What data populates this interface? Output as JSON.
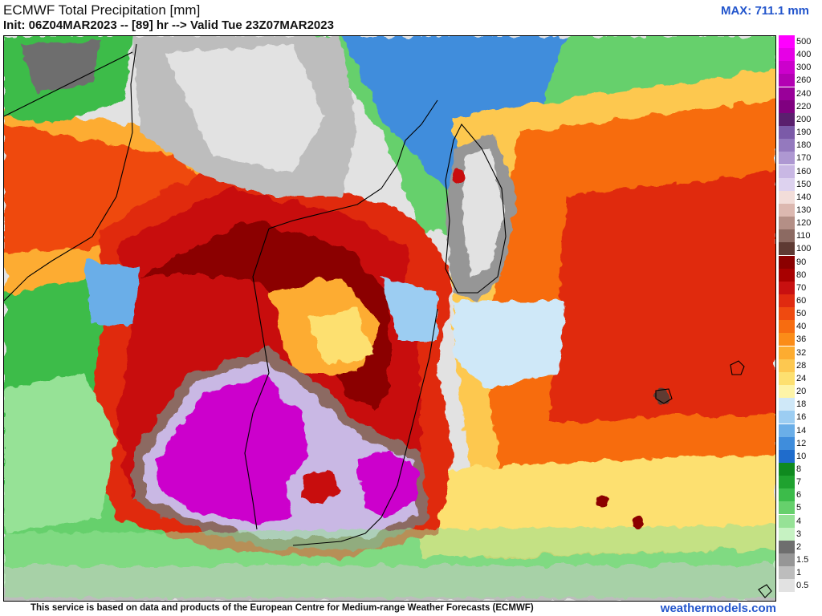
{
  "header": {
    "title": "ECMWF Total Precipitation [mm]",
    "subtitle": "Init: 06Z04MAR2023 -- [89] hr --> Valid Tue 23Z07MAR2023",
    "max_label": "MAX: 711.1 mm"
  },
  "footer": {
    "credit": "This service is based on data and products of the European Centre for Medium-range Weather Forecasts (ECMWF)",
    "brand": "weathermodels.com"
  },
  "legend": {
    "levels": [
      {
        "label": "500",
        "color": "#ff00ff"
      },
      {
        "label": "400",
        "color": "#e600e6"
      },
      {
        "label": "300",
        "color": "#cc00cc"
      },
      {
        "label": "260",
        "color": "#b300b3"
      },
      {
        "label": "240",
        "color": "#990099"
      },
      {
        "label": "220",
        "color": "#800080"
      },
      {
        "label": "200",
        "color": "#5a1f6e"
      },
      {
        "label": "190",
        "color": "#7b5aa8"
      },
      {
        "label": "180",
        "color": "#9479be"
      },
      {
        "label": "170",
        "color": "#ae98d2"
      },
      {
        "label": "160",
        "color": "#c9b8e4"
      },
      {
        "label": "150",
        "color": "#ddd2ef"
      },
      {
        "label": "140",
        "color": "#f2ddd9"
      },
      {
        "label": "130",
        "color": "#dcb8b0"
      },
      {
        "label": "120",
        "color": "#b48f86"
      },
      {
        "label": "110",
        "color": "#8c6a62"
      },
      {
        "label": "100",
        "color": "#5e3a33"
      },
      {
        "label": "90",
        "color": "#8b0000"
      },
      {
        "label": "80",
        "color": "#a80000"
      },
      {
        "label": "70",
        "color": "#c81010"
      },
      {
        "label": "60",
        "color": "#e02a10"
      },
      {
        "label": "50",
        "color": "#ef4a10"
      },
      {
        "label": "40",
        "color": "#f76c10"
      },
      {
        "label": "36",
        "color": "#fb8c18"
      },
      {
        "label": "32",
        "color": "#fdac30"
      },
      {
        "label": "28",
        "color": "#fdc850"
      },
      {
        "label": "24",
        "color": "#fde070"
      },
      {
        "label": "20",
        "color": "#fdf4a8"
      },
      {
        "label": "18",
        "color": "#cfe8f8"
      },
      {
        "label": "16",
        "color": "#9ccdf2"
      },
      {
        "label": "14",
        "color": "#6aaee8"
      },
      {
        "label": "12",
        "color": "#3f8ddc"
      },
      {
        "label": "10",
        "color": "#1f6ccc"
      },
      {
        "label": "8",
        "color": "#0f8a1f"
      },
      {
        "label": "7",
        "color": "#1fa22f"
      },
      {
        "label": "6",
        "color": "#3cbc4a"
      },
      {
        "label": "5",
        "color": "#66d06c"
      },
      {
        "label": "4",
        "color": "#96e296"
      },
      {
        "label": "3",
        "color": "#c6f2c2"
      },
      {
        "label": "2",
        "color": "#6e6e6e"
      },
      {
        "label": "1.5",
        "color": "#969696"
      },
      {
        "label": "1",
        "color": "#bdbdbd"
      },
      {
        "label": "0.5",
        "color": "#e2e2e2"
      }
    ]
  },
  "map": {
    "background_color": "#e8e8e8",
    "coastline_color": "#000000"
  }
}
